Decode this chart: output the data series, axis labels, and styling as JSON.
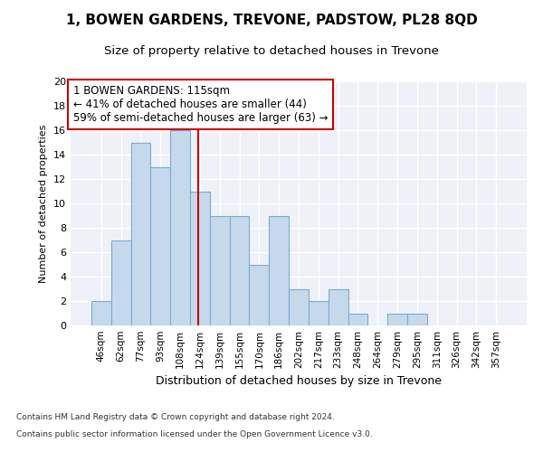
{
  "title1": "1, BOWEN GARDENS, TREVONE, PADSTOW, PL28 8QD",
  "title2": "Size of property relative to detached houses in Trevone",
  "xlabel": "Distribution of detached houses by size in Trevone",
  "ylabel": "Number of detached properties",
  "categories": [
    "46sqm",
    "62sqm",
    "77sqm",
    "93sqm",
    "108sqm",
    "124sqm",
    "139sqm",
    "155sqm",
    "170sqm",
    "186sqm",
    "202sqm",
    "217sqm",
    "233sqm",
    "248sqm",
    "264sqm",
    "279sqm",
    "295sqm",
    "311sqm",
    "326sqm",
    "342sqm",
    "357sqm"
  ],
  "values": [
    2,
    7,
    15,
    13,
    16,
    11,
    9,
    9,
    5,
    9,
    3,
    2,
    3,
    1,
    0,
    1,
    1,
    0,
    0,
    0,
    0
  ],
  "bar_color": "#c6d9ec",
  "bar_edge_color": "#7aabce",
  "vline_x": 4.93,
  "vline_color": "#cc0000",
  "annotation_title": "1 BOWEN GARDENS: 115sqm",
  "annotation_line1": "← 41% of detached houses are smaller (44)",
  "annotation_line2": "59% of semi-detached houses are larger (63) →",
  "annotation_box_color": "#ffffff",
  "annotation_box_edge": "#cc0000",
  "footer1": "Contains HM Land Registry data © Crown copyright and database right 2024.",
  "footer2": "Contains public sector information licensed under the Open Government Licence v3.0.",
  "ylim": [
    0,
    20
  ],
  "yticks": [
    0,
    2,
    4,
    6,
    8,
    10,
    12,
    14,
    16,
    18,
    20
  ],
  "bg_color": "#eef2f8",
  "grid_color": "#ffffff"
}
